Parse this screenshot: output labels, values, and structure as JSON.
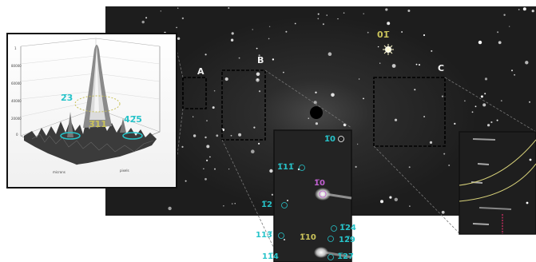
{
  "figure": {
    "panel_labels": {
      "a": "A",
      "b": "B",
      "c": "C"
    },
    "main_spot_label": "01̅",
    "inset_3d": {
      "labels": {
        "peak_left": "2̅3",
        "peak_mid": "3̅11",
        "peak_right": "42̅5"
      },
      "axis_titles": {
        "x": "microns",
        "y": "pixels"
      }
    },
    "inset_b_labels": [
      {
        "id": "l1",
        "text": "1̅0",
        "color": "cyan"
      },
      {
        "id": "l2",
        "text": "1̅11̅",
        "color": "cyan"
      },
      {
        "id": "l3",
        "text": "1̅0",
        "color": "magenta"
      },
      {
        "id": "l4",
        "text": "1̅2",
        "color": "cyan"
      },
      {
        "id": "l5",
        "text": "1̅24",
        "color": "cyan"
      },
      {
        "id": "l6",
        "text": "113̅",
        "color": "cyan"
      },
      {
        "id": "l7",
        "text": "1̅10",
        "color": "yellow"
      },
      {
        "id": "l8",
        "text": "12̅9",
        "color": "cyan"
      },
      {
        "id": "l9",
        "text": "11̅4",
        "color": "cyan"
      },
      {
        "id": "l10",
        "text": "1̅27",
        "color": "cyan"
      }
    ],
    "colors": {
      "background": "#1c1c1c",
      "cyan": "#27c3c9",
      "yellow": "#c9c25a",
      "magenta": "#c060d0",
      "dashed": "#000000"
    }
  }
}
